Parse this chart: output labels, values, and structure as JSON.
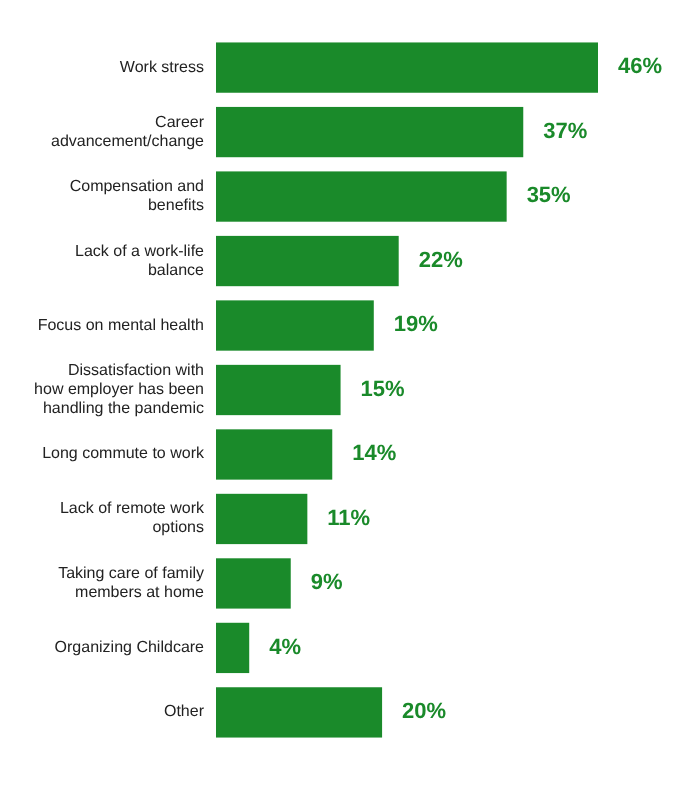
{
  "chart_data": {
    "type": "bar",
    "orientation": "horizontal",
    "categories": [
      "Work stress",
      "Career advancement/change",
      "Compensation and benefits",
      "Lack of a work-life balance",
      "Focus on mental health",
      "Dissatisfaction with how employer has been handling the pandemic",
      "Long commute to work",
      "Lack of remote work options",
      "Taking care of family members at home",
      "Organizing Childcare",
      "Other"
    ],
    "values": [
      46,
      37,
      35,
      22,
      19,
      15,
      14,
      11,
      9,
      4,
      20
    ],
    "value_labels": [
      "46%",
      "37%",
      "35%",
      "22%",
      "19%",
      "15%",
      "14%",
      "11%",
      "9%",
      "4%",
      "20%"
    ],
    "color": "#1a8a2a",
    "data_labels": true
  }
}
